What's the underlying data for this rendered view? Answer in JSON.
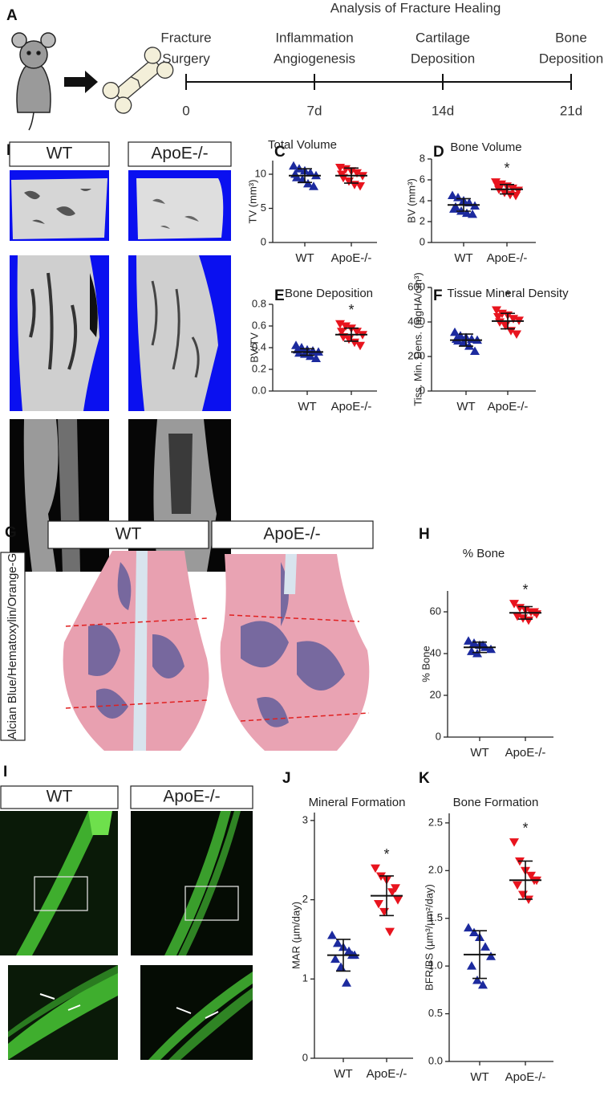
{
  "figure": {
    "panel_a": {
      "label": "A",
      "title": "Analysis of Fracture Healing",
      "stages": [
        [
          "Fracture",
          "Surgery"
        ],
        [
          "Inflammation",
          "Angiogenesis"
        ],
        [
          "Cartilage",
          "Deposition"
        ],
        [
          "Bone",
          "Deposition"
        ]
      ],
      "times": [
        "0",
        "7d",
        "14d",
        "21d"
      ]
    },
    "panel_b": {
      "label": "B",
      "columns": [
        "WT",
        "ApoE-/-"
      ]
    },
    "panel_g": {
      "label": "G",
      "columns": [
        "WT",
        "ApoE-/-"
      ],
      "stain": "Alcian Blue/Hematoxylin/Orange-G"
    },
    "panel_i": {
      "label": "I",
      "columns": [
        "WT",
        "ApoE-/-"
      ]
    }
  },
  "chart_data": [
    {
      "type": "strip",
      "panel": "C",
      "title": "Total Volume",
      "ylabel": "TV (mm³)",
      "categories": [
        "WT",
        "ApoE-/-"
      ],
      "colors": [
        "#1c2a9e",
        "#e8141e"
      ],
      "markers": [
        "triangle-up",
        "triangle-down"
      ],
      "values": [
        [
          11.2,
          10.8,
          10.5,
          10.2,
          9.8,
          9.5,
          9.2,
          8.6,
          8.2,
          10.0
        ],
        [
          11.0,
          10.8,
          10.5,
          10.2,
          9.8,
          9.5,
          9.0,
          8.5,
          8.3,
          10.0
        ]
      ],
      "means": [
        9.8,
        9.8
      ],
      "sds": [
        1.0,
        1.1
      ],
      "ylim": [
        0,
        12
      ],
      "yticks": [
        0,
        5,
        10
      ]
    },
    {
      "type": "strip",
      "panel": "D",
      "title": "Bone Volume",
      "ylabel": "BV (mm³)",
      "categories": [
        "WT",
        "ApoE-/-"
      ],
      "colors": [
        "#1c2a9e",
        "#e8141e"
      ],
      "markers": [
        "triangle-up",
        "triangle-down"
      ],
      "values": [
        [
          4.5,
          4.3,
          4.0,
          3.8,
          3.5,
          3.4,
          3.0,
          2.8,
          2.7,
          3.2
        ],
        [
          5.8,
          5.6,
          5.4,
          5.2,
          5.0,
          5.1,
          4.8,
          4.6,
          4.5,
          5.5
        ]
      ],
      "means": [
        3.6,
        5.1
      ],
      "sds": [
        0.6,
        0.45
      ],
      "annotation": "*",
      "ylim": [
        0,
        8
      ],
      "yticks": [
        0,
        2,
        4,
        6,
        8
      ]
    },
    {
      "type": "strip",
      "panel": "E",
      "title": "Bone Deposition",
      "ylabel": "BV/TV",
      "categories": [
        "WT",
        "ApoE-/-"
      ],
      "colors": [
        "#1c2a9e",
        "#e8141e"
      ],
      "markers": [
        "triangle-up",
        "triangle-down"
      ],
      "values": [
        [
          0.42,
          0.4,
          0.38,
          0.37,
          0.36,
          0.35,
          0.34,
          0.32,
          0.3,
          0.38
        ],
        [
          0.62,
          0.6,
          0.58,
          0.55,
          0.52,
          0.5,
          0.48,
          0.45,
          0.42,
          0.55
        ]
      ],
      "means": [
        0.36,
        0.52
      ],
      "sds": [
        0.03,
        0.06
      ],
      "annotation": "*",
      "ylim": [
        0,
        0.8
      ],
      "yticks": [
        {
          "value": 0,
          "label": "0.0"
        },
        0.2,
        0.4,
        0.6,
        0.8
      ]
    },
    {
      "type": "strip",
      "panel": "F",
      "title": "Tissue Mineral Density",
      "ylabel": "Tiss. Min. Dens. (mgHA/cm³)",
      "categories": [
        "WT",
        "ApoE-/-"
      ],
      "colors": [
        "#1c2a9e",
        "#e8141e"
      ],
      "markers": [
        "triangle-up",
        "triangle-down"
      ],
      "values": [
        [
          340,
          320,
          310,
          300,
          295,
          290,
          280,
          260,
          230,
          300
        ],
        [
          470,
          450,
          440,
          420,
          410,
          400,
          380,
          350,
          330,
          430
        ]
      ],
      "means": [
        295,
        405
      ],
      "sds": [
        35,
        45
      ],
      "annotation": "*",
      "ylim": [
        0,
        600
      ],
      "yticks": [
        0,
        200,
        400,
        600
      ]
    },
    {
      "type": "strip",
      "panel": "H",
      "title": "% Bone",
      "ylabel": "% Bone",
      "categories": [
        "WT",
        "ApoE-/-"
      ],
      "colors": [
        "#1c2a9e",
        "#e8141e"
      ],
      "markers": [
        "triangle-up",
        "triangle-down"
      ],
      "values": [
        [
          46,
          45,
          44,
          43,
          42,
          41,
          40,
          44
        ],
        [
          64,
          62,
          61,
          60,
          59,
          58,
          57,
          56,
          60
        ]
      ],
      "means": [
        43,
        59.5
      ],
      "sds": [
        2.5,
        3
      ],
      "annotation": "*",
      "ylim": [
        0,
        70
      ],
      "yticks": [
        0,
        20,
        40,
        60
      ]
    },
    {
      "type": "strip",
      "panel": "J",
      "title": "Mineral Formation",
      "ylabel": "MAR (µm/day)",
      "categories": [
        "WT",
        "ApoE-/-"
      ],
      "colors": [
        "#1c2a9e",
        "#e8141e"
      ],
      "markers": [
        "triangle-up",
        "triangle-down"
      ],
      "values": [
        [
          1.55,
          1.45,
          1.4,
          1.35,
          1.3,
          1.25,
          1.15,
          0.95,
          1.3
        ],
        [
          2.4,
          2.3,
          2.25,
          2.1,
          2.0,
          1.95,
          1.85,
          1.6,
          2.15
        ]
      ],
      "means": [
        1.3,
        2.05
      ],
      "sds": [
        0.2,
        0.25
      ],
      "annotation": "*",
      "ylim": [
        0,
        3.1
      ],
      "yticks": [
        0,
        1,
        2,
        3
      ]
    },
    {
      "type": "strip",
      "panel": "K",
      "title": "Bone  Formation",
      "ylabel": "BFR/BS (µm³/µm²/day)",
      "categories": [
        "WT",
        "ApoE-/-"
      ],
      "colors": [
        "#1c2a9e",
        "#e8141e"
      ],
      "markers": [
        "triangle-up",
        "triangle-down"
      ],
      "values": [
        [
          1.4,
          1.35,
          1.3,
          1.2,
          1.1,
          1.0,
          0.85,
          0.8
        ],
        [
          2.3,
          2.1,
          2.0,
          1.95,
          1.9,
          1.85,
          1.75,
          1.7,
          1.9
        ]
      ],
      "means": [
        1.12,
        1.9
      ],
      "sds": [
        0.25,
        0.2
      ],
      "annotation": "*",
      "ylim": [
        0,
        2.6
      ],
      "yticks": [
        {
          "value": 0,
          "label": "0.0"
        },
        0.5,
        {
          "value": 1,
          "label": "1.0"
        },
        1.5,
        {
          "value": 2,
          "label": "2.0"
        },
        2.5
      ]
    }
  ]
}
